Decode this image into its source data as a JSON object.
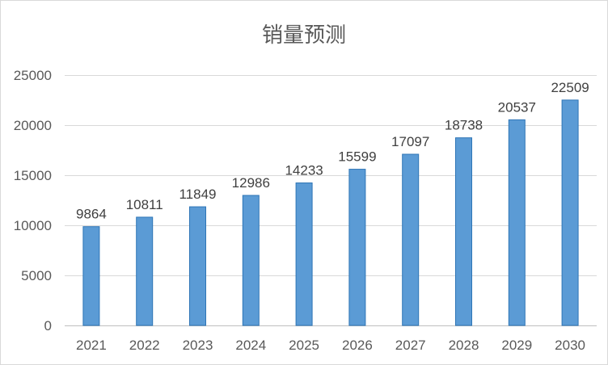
{
  "chart_data": {
    "type": "bar",
    "title": "销量预测",
    "xlabel": "",
    "ylabel": "",
    "categories": [
      "2021",
      "2022",
      "2023",
      "2024",
      "2025",
      "2026",
      "2027",
      "2028",
      "2029",
      "2030"
    ],
    "values": [
      9864,
      10811,
      11849,
      12986,
      14233,
      15599,
      17097,
      18738,
      20537,
      22509
    ],
    "ylim": [
      0,
      25000
    ],
    "yticks": [
      0,
      5000,
      10000,
      15000,
      20000,
      25000
    ],
    "grid": true,
    "legend": "none",
    "bar_color": "#5b9bd5",
    "data_labels": true
  }
}
